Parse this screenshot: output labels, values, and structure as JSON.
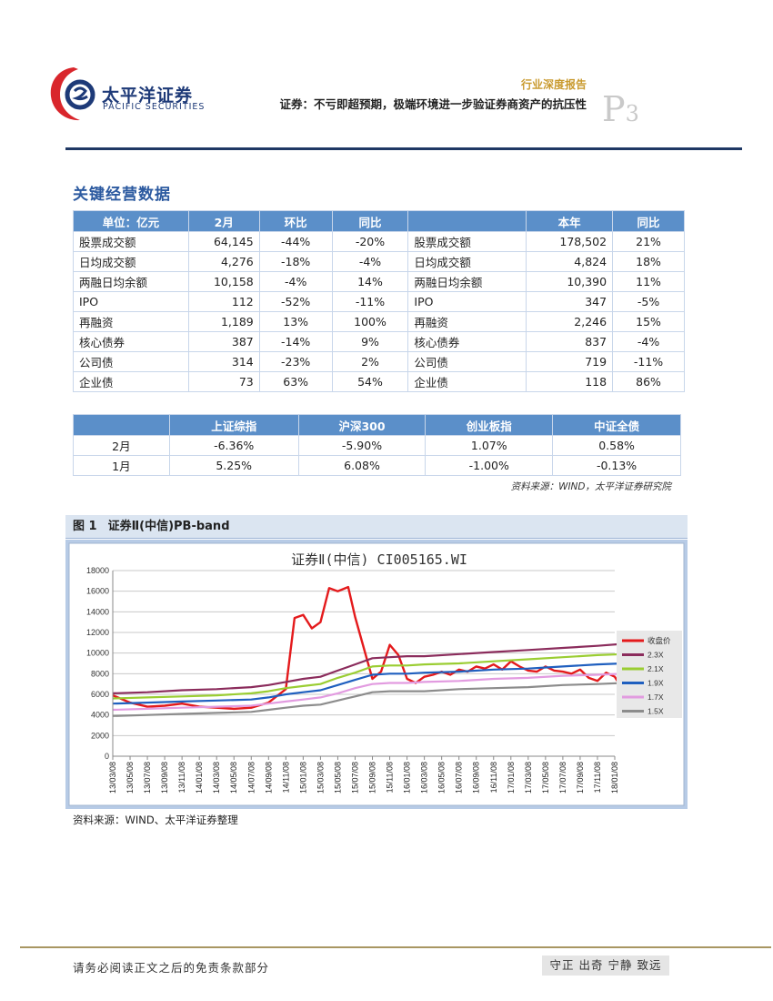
{
  "header": {
    "logo_cn": "太平洋证券",
    "logo_en": "PACIFIC SECURITIES",
    "report_type": "行业深度报告",
    "report_title": "证券：不亏即超预期，极端环境进一步验证券商资产的抗压性",
    "page_letter": "P",
    "page_number": "3",
    "colors": {
      "navy": "#1f3864",
      "brand_red": "#d9262c",
      "gold": "#c99a2e"
    }
  },
  "section": {
    "title": "关键经营数据"
  },
  "table1": {
    "headers": [
      "单位：亿元",
      "2月",
      "环比",
      "同比",
      "",
      "本年",
      "同比"
    ],
    "rows": [
      [
        "股票成交额",
        "64,145",
        "-44%",
        "-20%",
        "股票成交额",
        "178,502",
        "21%"
      ],
      [
        "日均成交额",
        "4,276",
        "-18%",
        "-4%",
        "日均成交额",
        "4,824",
        "18%"
      ],
      [
        "两融日均余额",
        "10,158",
        "-4%",
        "14%",
        "两融日均余额",
        "10,390",
        "11%"
      ],
      [
        "IPO",
        "112",
        "-52%",
        "-11%",
        "IPO",
        "347",
        "-5%"
      ],
      [
        "再融资",
        "1,189",
        "13%",
        "100%",
        "再融资",
        "2,246",
        "15%"
      ],
      [
        "核心债券",
        "387",
        "-14%",
        "9%",
        "核心债券",
        "837",
        "-4%"
      ],
      [
        "公司债",
        "314",
        "-23%",
        "2%",
        "公司债",
        "719",
        "-11%"
      ],
      [
        "企业债",
        "73",
        "63%",
        "54%",
        "企业债",
        "118",
        "86%"
      ]
    ]
  },
  "table2": {
    "headers": [
      "",
      "上证综指",
      "沪深300",
      "创业板指",
      "中证全债"
    ],
    "rows": [
      [
        "2月",
        "-6.36%",
        "-5.90%",
        "1.07%",
        "0.58%"
      ],
      [
        "1月",
        "5.25%",
        "6.08%",
        "-1.00%",
        "-0.13%"
      ]
    ]
  },
  "table_source": "资料来源：WIND，太平洋证券研究院",
  "figure": {
    "label": "图 1",
    "caption": "证券Ⅱ(中信)PB-band",
    "source": "资料来源：WIND、太平洋证券整理"
  },
  "chart_data": {
    "type": "line",
    "title": "证券Ⅱ(中信) CI005165.WI",
    "ylim": [
      0,
      18000
    ],
    "yticks": [
      0,
      2000,
      4000,
      6000,
      8000,
      10000,
      12000,
      14000,
      16000,
      18000
    ],
    "xticks": [
      "13/03/08",
      "13/05/08",
      "13/07/08",
      "13/09/08",
      "13/11/08",
      "14/01/08",
      "14/03/08",
      "14/05/08",
      "14/07/08",
      "14/09/08",
      "14/11/08",
      "15/01/08",
      "15/03/08",
      "15/05/08",
      "15/07/08",
      "15/09/08",
      "15/11/08",
      "16/01/08",
      "16/03/08",
      "16/05/08",
      "16/07/08",
      "16/09/08",
      "16/11/08",
      "17/01/08",
      "17/03/08",
      "17/05/08",
      "17/07/08",
      "17/09/08",
      "17/11/08",
      "18/01/08"
    ],
    "grid": true,
    "legend_position": "right",
    "series": [
      {
        "name": "收盘价",
        "color": "#e41a1c",
        "points": [
          [
            0,
            5900
          ],
          [
            1,
            5200
          ],
          [
            2,
            4800
          ],
          [
            3,
            4900
          ],
          [
            4,
            5100
          ],
          [
            5,
            4800
          ],
          [
            6,
            4700
          ],
          [
            7,
            4600
          ],
          [
            8,
            4700
          ],
          [
            9,
            5200
          ],
          [
            10,
            6500
          ],
          [
            10.5,
            13400
          ],
          [
            11,
            13700
          ],
          [
            11.5,
            12400
          ],
          [
            12,
            13000
          ],
          [
            12.5,
            16300
          ],
          [
            13,
            16000
          ],
          [
            13.6,
            16400
          ],
          [
            14,
            13500
          ],
          [
            14.5,
            10500
          ],
          [
            15,
            7500
          ],
          [
            15.5,
            8200
          ],
          [
            16,
            10800
          ],
          [
            16.5,
            9800
          ],
          [
            17,
            7500
          ],
          [
            17.5,
            7100
          ],
          [
            18,
            7700
          ],
          [
            18.5,
            7900
          ],
          [
            19,
            8200
          ],
          [
            19.5,
            7900
          ],
          [
            20,
            8400
          ],
          [
            20.5,
            8200
          ],
          [
            21,
            8700
          ],
          [
            21.5,
            8500
          ],
          [
            22,
            8900
          ],
          [
            22.5,
            8400
          ],
          [
            23,
            9200
          ],
          [
            23.5,
            8700
          ],
          [
            24,
            8300
          ],
          [
            24.5,
            8200
          ],
          [
            25,
            8700
          ],
          [
            25.5,
            8300
          ],
          [
            26,
            8200
          ],
          [
            26.5,
            8000
          ],
          [
            27,
            8400
          ],
          [
            27.5,
            7600
          ],
          [
            28,
            7300
          ],
          [
            28.5,
            8100
          ],
          [
            29,
            7700
          ],
          [
            29.3,
            6900
          ]
        ]
      },
      {
        "name": "2.3X",
        "color": "#8b2c5c",
        "points": [
          [
            0,
            6100
          ],
          [
            2,
            6200
          ],
          [
            4,
            6400
          ],
          [
            6,
            6500
          ],
          [
            8,
            6700
          ],
          [
            9,
            6900
          ],
          [
            10,
            7200
          ],
          [
            11,
            7500
          ],
          [
            12,
            7700
          ],
          [
            13,
            8300
          ],
          [
            14,
            8900
          ],
          [
            15,
            9500
          ],
          [
            16,
            9600
          ],
          [
            17,
            9700
          ],
          [
            18,
            9700
          ],
          [
            20,
            9900
          ],
          [
            22,
            10100
          ],
          [
            24,
            10300
          ],
          [
            26,
            10500
          ],
          [
            28,
            10700
          ],
          [
            29.5,
            10900
          ]
        ]
      },
      {
        "name": "2.1X",
        "color": "#9acd32",
        "points": [
          [
            0,
            5600
          ],
          [
            2,
            5700
          ],
          [
            4,
            5800
          ],
          [
            6,
            5900
          ],
          [
            8,
            6100
          ],
          [
            9,
            6300
          ],
          [
            10,
            6600
          ],
          [
            11,
            6800
          ],
          [
            12,
            7000
          ],
          [
            13,
            7600
          ],
          [
            14,
            8100
          ],
          [
            15,
            8700
          ],
          [
            16,
            8800
          ],
          [
            17,
            8800
          ],
          [
            18,
            8900
          ],
          [
            20,
            9000
          ],
          [
            22,
            9200
          ],
          [
            24,
            9400
          ],
          [
            26,
            9600
          ],
          [
            28,
            9800
          ],
          [
            29.5,
            9900
          ]
        ]
      },
      {
        "name": "1.9X",
        "color": "#1f5fbf",
        "points": [
          [
            0,
            5100
          ],
          [
            2,
            5200
          ],
          [
            4,
            5300
          ],
          [
            6,
            5400
          ],
          [
            8,
            5500
          ],
          [
            9,
            5700
          ],
          [
            10,
            6000
          ],
          [
            11,
            6200
          ],
          [
            12,
            6400
          ],
          [
            13,
            6900
          ],
          [
            14,
            7400
          ],
          [
            15,
            7900
          ],
          [
            16,
            8000
          ],
          [
            17,
            8000
          ],
          [
            18,
            8100
          ],
          [
            20,
            8200
          ],
          [
            22,
            8400
          ],
          [
            24,
            8500
          ],
          [
            26,
            8700
          ],
          [
            28,
            8900
          ],
          [
            29.5,
            9000
          ]
        ]
      },
      {
        "name": "1.7X",
        "color": "#e29be0",
        "points": [
          [
            0,
            4500
          ],
          [
            2,
            4600
          ],
          [
            4,
            4700
          ],
          [
            6,
            4800
          ],
          [
            8,
            4900
          ],
          [
            9,
            5100
          ],
          [
            10,
            5300
          ],
          [
            11,
            5500
          ],
          [
            12,
            5700
          ],
          [
            13,
            6100
          ],
          [
            14,
            6600
          ],
          [
            15,
            7000
          ],
          [
            16,
            7100
          ],
          [
            17,
            7100
          ],
          [
            18,
            7200
          ],
          [
            20,
            7300
          ],
          [
            22,
            7500
          ],
          [
            24,
            7600
          ],
          [
            26,
            7800
          ],
          [
            28,
            7900
          ],
          [
            29.5,
            8000
          ]
        ]
      },
      {
        "name": "1.5X",
        "color": "#8c8c8c",
        "points": [
          [
            0,
            3900
          ],
          [
            2,
            4000
          ],
          [
            4,
            4100
          ],
          [
            6,
            4200
          ],
          [
            8,
            4300
          ],
          [
            9,
            4500
          ],
          [
            10,
            4700
          ],
          [
            11,
            4900
          ],
          [
            12,
            5000
          ],
          [
            13,
            5400
          ],
          [
            14,
            5800
          ],
          [
            15,
            6200
          ],
          [
            16,
            6300
          ],
          [
            17,
            6300
          ],
          [
            18,
            6300
          ],
          [
            20,
            6500
          ],
          [
            22,
            6600
          ],
          [
            24,
            6700
          ],
          [
            26,
            6900
          ],
          [
            28,
            7000
          ],
          [
            29.5,
            7100
          ]
        ]
      }
    ]
  },
  "footer": {
    "disclaimer": "请务必阅读正文之后的免责条款部分",
    "motto": "守正 出奇 宁静 致远"
  }
}
